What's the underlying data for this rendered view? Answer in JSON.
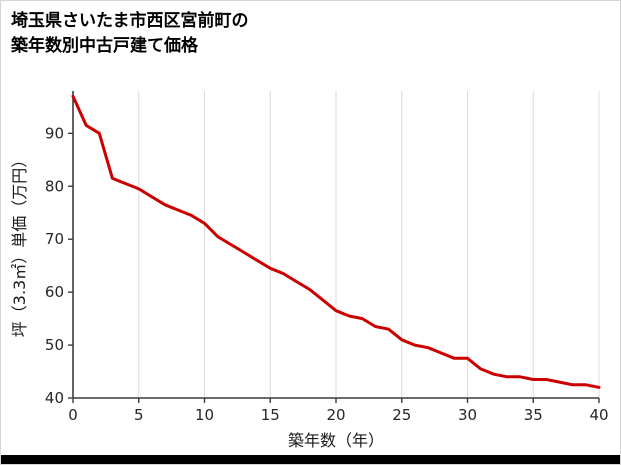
{
  "title": {
    "line1": "埼玉県さいたま市西区宮前町の",
    "line2": "築年数別中古戸建て価格"
  },
  "colors": {
    "line": "#cc0000",
    "grid": "#dcdcdc",
    "axis": "#3c3c3c",
    "tick_text": "#262626",
    "bottom_bar": "#000000"
  },
  "chart_data": {
    "type": "line",
    "title": "埼玉県さいたま市西区宮前町の築年数別中古戸建て価格",
    "xlabel": "築年数（年）",
    "ylabel": "坪（3.3㎡）単価（万円）",
    "xlim": [
      0,
      40
    ],
    "ylim": [
      40,
      98
    ],
    "x_ticks": [
      0,
      5,
      10,
      15,
      20,
      25,
      30,
      35,
      40
    ],
    "y_ticks": [
      40,
      50,
      60,
      70,
      80,
      90
    ],
    "grid": "vertical-only",
    "legend": "none",
    "series": [
      {
        "name": "坪単価（万円）",
        "x": [
          0,
          1,
          2,
          3,
          4,
          5,
          6,
          7,
          8,
          9,
          10,
          11,
          12,
          13,
          14,
          15,
          16,
          17,
          18,
          19,
          20,
          21,
          22,
          23,
          24,
          25,
          26,
          27,
          28,
          29,
          30,
          31,
          32,
          33,
          34,
          35,
          36,
          37,
          38,
          39,
          40
        ],
        "values": [
          97,
          91.5,
          90,
          81.5,
          80.5,
          79.5,
          78,
          76.5,
          75.5,
          74.5,
          73,
          70.5,
          69,
          67.5,
          66,
          64.5,
          63.5,
          62,
          60.5,
          58.5,
          56.5,
          55.5,
          55,
          53.5,
          53,
          51,
          50,
          49.5,
          48.5,
          47.5,
          47.5,
          45.5,
          44.5,
          44,
          44,
          43.5,
          43.5,
          43,
          42.5,
          42.5,
          42
        ]
      }
    ]
  }
}
